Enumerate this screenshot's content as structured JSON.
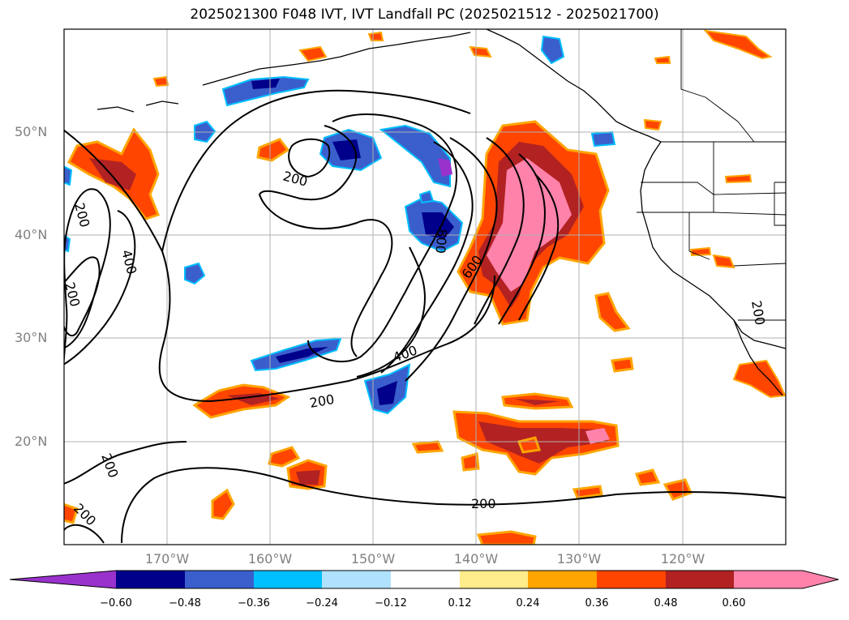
{
  "title": "2025021300 F048 IVT, IVT Landfall PC (2025021512 - 2025021700)",
  "lat_labels": [
    "50°N",
    "40°N",
    "30°N",
    "20°N"
  ],
  "lon_labels": [
    "170°W",
    "160°W",
    "150°W",
    "140°W",
    "130°W",
    "120°W"
  ],
  "colorbar": {
    "ticks": [
      "−0.60",
      "−0.48",
      "−0.36",
      "−0.24",
      "−0.12",
      "0.12",
      "0.24",
      "0.36",
      "0.48",
      "0.60"
    ],
    "colors": [
      "#9932cc",
      "#00008b",
      "#3a5fcd",
      "#00bfff",
      "#b0e2ff",
      "#ffffff",
      "#ffec8b",
      "#ffa500",
      "#ff4500",
      "#b22222",
      "#ff82ab"
    ]
  },
  "contour_labels": [
    "200",
    "200",
    "400",
    "200",
    "200",
    "200",
    "400",
    "200",
    "800",
    "600",
    "200",
    "200"
  ],
  "colors": {
    "negative_fill": "#3a5fcd",
    "positive_fill": "#ff4500",
    "strong_positive": "#ff82ab"
  }
}
